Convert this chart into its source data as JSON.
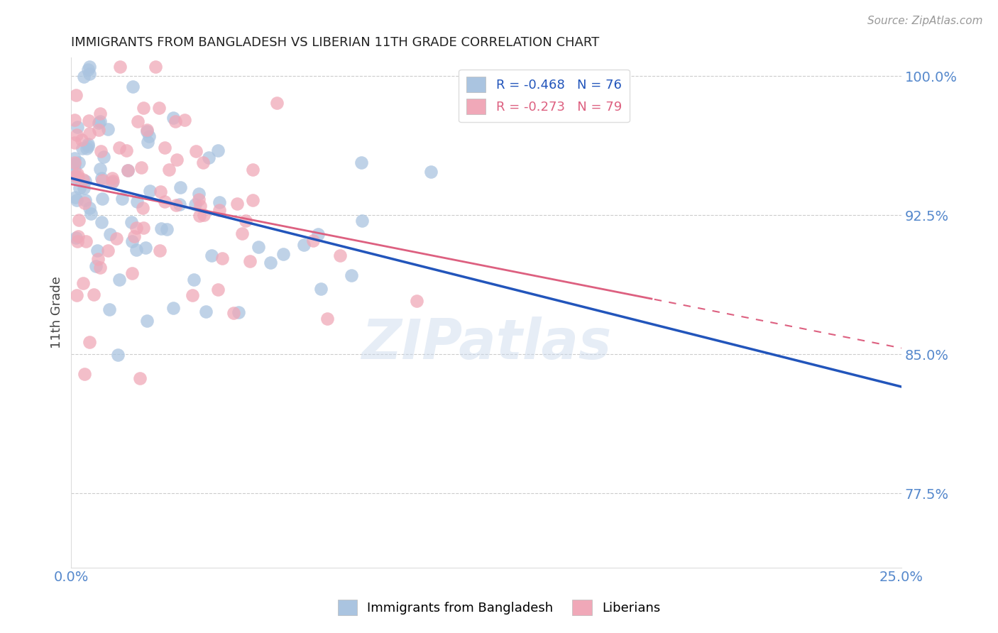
{
  "title": "IMMIGRANTS FROM BANGLADESH VS LIBERIAN 11TH GRADE CORRELATION CHART",
  "source": "Source: ZipAtlas.com",
  "ylabel": "11th Grade",
  "xlim": [
    0.0,
    0.25
  ],
  "ylim": [
    0.735,
    1.01
  ],
  "blue_R": -0.468,
  "blue_N": 76,
  "pink_R": -0.273,
  "pink_N": 79,
  "legend_label_blue": "Immigrants from Bangladesh",
  "legend_label_pink": "Liberians",
  "blue_color": "#aac4e0",
  "pink_color": "#f0a8b8",
  "blue_line_color": "#2255bb",
  "pink_line_color": "#dd6080",
  "watermark": "ZIPatlas",
  "title_color": "#222222",
  "axis_label_color": "#5588cc",
  "right_ytick_vals": [
    0.775,
    0.85,
    0.925,
    1.0
  ],
  "right_ytick_labels": [
    "77.5%",
    "85.0%",
    "92.5%",
    "100.0%"
  ],
  "grid_yvals": [
    0.775,
    0.85,
    0.925,
    1.0
  ],
  "xtick_vals": [
    0.0,
    0.25
  ],
  "xtick_labels": [
    "0.0%",
    "25.0%"
  ]
}
